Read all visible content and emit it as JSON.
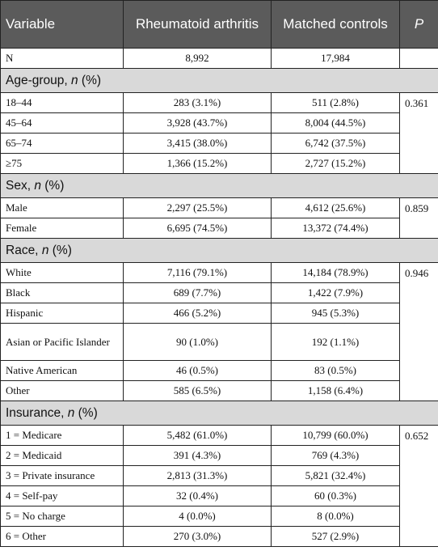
{
  "table": {
    "columns": [
      "Variable",
      "Rheumatoid arthritis",
      "Matched controls",
      "P"
    ],
    "n_row": {
      "label": "N",
      "values": [
        "8,992",
        "17,984"
      ]
    },
    "groups": [
      {
        "title": [
          "Age-group, ",
          "n",
          " (%)"
        ],
        "p": "0.361",
        "rows": [
          [
            "18–44",
            "283 (3.1%)",
            "511 (2.8%)"
          ],
          [
            "45–64",
            "3,928 (43.7%)",
            "8,004 (44.5%)"
          ],
          [
            "65–74",
            "3,415 (38.0%)",
            "6,742 (37.5%)"
          ],
          [
            "≥75",
            "1,366 (15.2%)",
            "2,727 (15.2%)"
          ]
        ]
      },
      {
        "title": [
          "Sex, ",
          "n",
          " (%)"
        ],
        "p": "0.859",
        "rows": [
          [
            "Male",
            "2,297 (25.5%)",
            "4,612 (25.6%)"
          ],
          [
            "Female",
            "6,695 (74.5%)",
            "13,372 (74.4%)"
          ]
        ]
      },
      {
        "title": [
          "Race, ",
          "n",
          " (%)"
        ],
        "p": "0.946",
        "rows": [
          [
            "White",
            "7,116 (79.1%)",
            "14,184 (78.9%)"
          ],
          [
            "Black",
            "689 (7.7%)",
            "1,422 (7.9%)"
          ],
          [
            "Hispanic",
            "466 (5.2%)",
            "945 (5.3%)"
          ],
          [
            "Asian or Pacific Islander",
            "90 (1.0%)",
            "192 (1.1%)"
          ],
          [
            "Native American",
            "46 (0.5%)",
            "83 (0.5%)"
          ],
          [
            "Other",
            "585 (6.5%)",
            "1,158 (6.4%)"
          ]
        ]
      },
      {
        "title": [
          "Insurance, ",
          "n",
          " (%)"
        ],
        "p": "0.652",
        "rows": [
          [
            "1 = Medicare",
            "5,482 (61.0%)",
            "10,799 (60.0%)"
          ],
          [
            "2 = Medicaid",
            "391 (4.3%)",
            "769 (4.3%)"
          ],
          [
            "3 = Private insurance",
            "2,813 (31.3%)",
            "5,821 (32.4%)"
          ],
          [
            "4 = Self-pay",
            "32 (0.4%)",
            "60 (0.3%)"
          ],
          [
            "5 = No charge",
            "4 (0.0%)",
            "8 (0.0%)"
          ],
          [
            "6 = Other",
            "270 (3.0%)",
            "527 (2.9%)"
          ]
        ]
      }
    ]
  }
}
